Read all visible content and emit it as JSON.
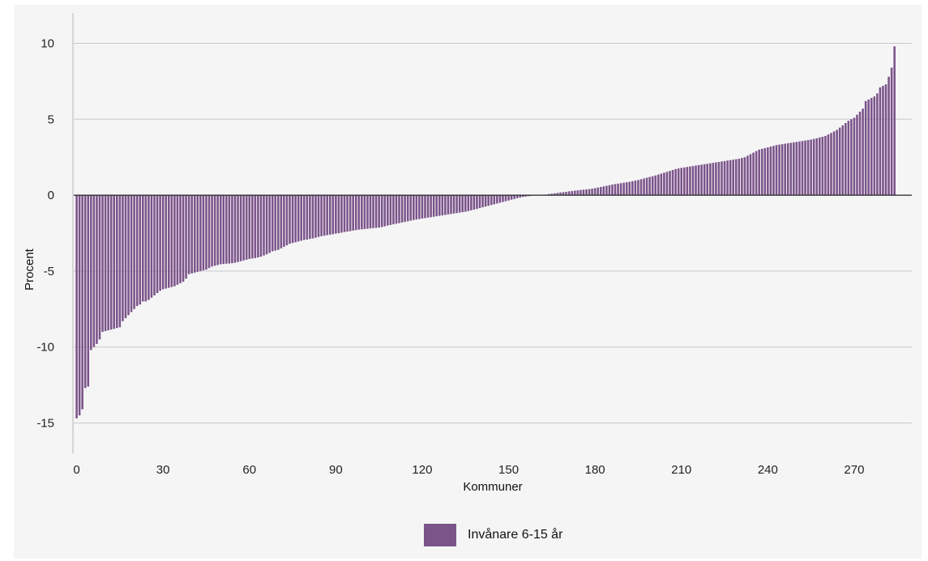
{
  "chart_data": {
    "type": "bar",
    "xlabel": "Kommuner",
    "ylabel": "Procent",
    "xlim": [
      -1,
      290
    ],
    "ylim": [
      -17,
      12
    ],
    "x_ticks": [
      0,
      30,
      60,
      90,
      120,
      150,
      180,
      210,
      240,
      270
    ],
    "x_tick_labels": [
      "0",
      "30",
      "60",
      "90",
      "120",
      "150",
      "180",
      "210",
      "240",
      "270"
    ],
    "y_ticks": [
      -15,
      -10,
      -5,
      0,
      5,
      10
    ],
    "y_tick_labels": [
      "-15",
      "-10",
      "-5",
      "0",
      "5",
      "10"
    ],
    "grid": "horizontal",
    "legend_position": "bottom-center",
    "series": [
      {
        "name": "Invånare 6-15 år",
        "color": "#7b548a",
        "values": [
          -14.7,
          -14.5,
          -14.1,
          -12.7,
          -12.6,
          -10.2,
          -10.0,
          -9.8,
          -9.5,
          -9.0,
          -8.95,
          -8.9,
          -8.85,
          -8.8,
          -8.75,
          -8.7,
          -8.3,
          -8.1,
          -7.9,
          -7.7,
          -7.5,
          -7.3,
          -7.2,
          -7.0,
          -7.0,
          -6.9,
          -6.75,
          -6.6,
          -6.45,
          -6.3,
          -6.2,
          -6.15,
          -6.1,
          -6.05,
          -6.0,
          -5.9,
          -5.8,
          -5.7,
          -5.5,
          -5.2,
          -5.15,
          -5.1,
          -5.05,
          -5.0,
          -4.95,
          -4.9,
          -4.8,
          -4.7,
          -4.65,
          -4.6,
          -4.55,
          -4.53,
          -4.51,
          -4.5,
          -4.48,
          -4.45,
          -4.4,
          -4.35,
          -4.3,
          -4.25,
          -4.2,
          -4.17,
          -4.14,
          -4.1,
          -4.05,
          -3.97,
          -3.9,
          -3.8,
          -3.7,
          -3.65,
          -3.6,
          -3.5,
          -3.4,
          -3.3,
          -3.2,
          -3.15,
          -3.1,
          -3.05,
          -3.0,
          -2.95,
          -2.92,
          -2.88,
          -2.85,
          -2.8,
          -2.75,
          -2.7,
          -2.67,
          -2.63,
          -2.6,
          -2.57,
          -2.53,
          -2.5,
          -2.47,
          -2.43,
          -2.4,
          -2.37,
          -2.33,
          -2.3,
          -2.27,
          -2.25,
          -2.23,
          -2.21,
          -2.19,
          -2.17,
          -2.15,
          -2.13,
          -2.1,
          -2.05,
          -2.0,
          -1.96,
          -1.92,
          -1.88,
          -1.84,
          -1.8,
          -1.76,
          -1.72,
          -1.68,
          -1.64,
          -1.6,
          -1.57,
          -1.54,
          -1.51,
          -1.48,
          -1.45,
          -1.42,
          -1.39,
          -1.36,
          -1.33,
          -1.3,
          -1.27,
          -1.24,
          -1.21,
          -1.18,
          -1.15,
          -1.12,
          -1.09,
          -1.05,
          -1.0,
          -0.95,
          -0.9,
          -0.85,
          -0.8,
          -0.75,
          -0.7,
          -0.65,
          -0.6,
          -0.55,
          -0.5,
          -0.45,
          -0.4,
          -0.35,
          -0.3,
          -0.25,
          -0.2,
          -0.16,
          -0.12,
          -0.09,
          -0.06,
          -0.04,
          -0.02,
          -0.01,
          0.0,
          0.02,
          0.04,
          0.07,
          0.1,
          0.12,
          0.15,
          0.18,
          0.2,
          0.22,
          0.25,
          0.27,
          0.3,
          0.32,
          0.34,
          0.36,
          0.38,
          0.4,
          0.43,
          0.46,
          0.5,
          0.54,
          0.58,
          0.62,
          0.66,
          0.7,
          0.73,
          0.76,
          0.79,
          0.82,
          0.85,
          0.88,
          0.92,
          0.96,
          1.0,
          1.05,
          1.1,
          1.15,
          1.2,
          1.25,
          1.3,
          1.36,
          1.42,
          1.48,
          1.54,
          1.6,
          1.66,
          1.72,
          1.76,
          1.8,
          1.83,
          1.86,
          1.89,
          1.92,
          1.95,
          1.98,
          2.01,
          2.04,
          2.07,
          2.1,
          2.13,
          2.16,
          2.19,
          2.22,
          2.25,
          2.28,
          2.31,
          2.34,
          2.37,
          2.4,
          2.45,
          2.5,
          2.6,
          2.7,
          2.8,
          2.9,
          3.0,
          3.05,
          3.1,
          3.15,
          3.2,
          3.25,
          3.3,
          3.33,
          3.36,
          3.39,
          3.42,
          3.45,
          3.48,
          3.51,
          3.54,
          3.57,
          3.6,
          3.63,
          3.66,
          3.7,
          3.75,
          3.8,
          3.85,
          3.9,
          4.0,
          4.1,
          4.2,
          4.3,
          4.45,
          4.6,
          4.75,
          4.9,
          5.0,
          5.1,
          5.3,
          5.5,
          5.7,
          6.2,
          6.3,
          6.4,
          6.5,
          6.7,
          7.1,
          7.2,
          7.3,
          7.8,
          8.4,
          9.8
        ]
      }
    ]
  }
}
